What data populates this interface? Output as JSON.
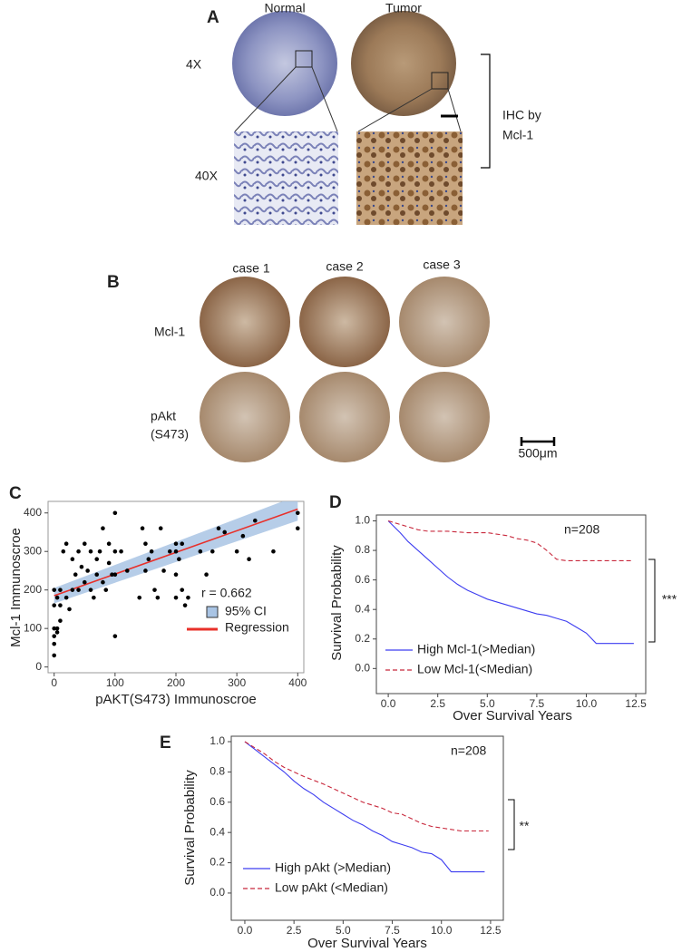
{
  "panels": {
    "A": {
      "label": "A",
      "columns": [
        "Normal",
        "Tumor"
      ],
      "rows": [
        "4X",
        "40X"
      ],
      "bracket_label": [
        "IHC by",
        "Mcl-1"
      ]
    },
    "B": {
      "label": "B",
      "columns": [
        "case 1",
        "case 2",
        "case 3"
      ],
      "rows": [
        [
          "Mcl-1"
        ],
        [
          "pAkt",
          "(S473)"
        ]
      ],
      "scale_bar": "500μm"
    }
  },
  "chart_data": [
    {
      "type": "scatter",
      "panel_label": "C",
      "xlabel": "pAKT(S473) Immunoscroe",
      "ylabel": "Mcl-1 Immunoscroe",
      "annotation": "r = 0.662",
      "xlim": [
        -10,
        410
      ],
      "ylim": [
        -15,
        430
      ],
      "xticks": [
        0,
        100,
        200,
        300,
        400
      ],
      "yticks": [
        0,
        100,
        200,
        300,
        400
      ],
      "color": "#000000",
      "x": [
        0,
        0,
        0,
        0,
        0,
        0,
        5,
        5,
        5,
        10,
        10,
        10,
        15,
        20,
        20,
        25,
        30,
        30,
        35,
        40,
        40,
        45,
        50,
        50,
        55,
        60,
        60,
        65,
        70,
        70,
        75,
        80,
        80,
        85,
        90,
        90,
        95,
        100,
        100,
        100,
        100,
        110,
        120,
        140,
        145,
        150,
        150,
        155,
        160,
        165,
        170,
        175,
        180,
        190,
        200,
        200,
        200,
        200,
        205,
        210,
        210,
        215,
        220,
        240,
        250,
        260,
        270,
        280,
        300,
        310,
        320,
        330,
        360,
        400,
        400
      ],
      "y": [
        30,
        80,
        100,
        200,
        160,
        60,
        90,
        100,
        180,
        120,
        160,
        200,
        300,
        320,
        180,
        150,
        280,
        200,
        240,
        200,
        300,
        260,
        220,
        320,
        250,
        200,
        300,
        180,
        240,
        280,
        300,
        220,
        360,
        200,
        270,
        320,
        240,
        400,
        300,
        240,
        80,
        300,
        250,
        180,
        360,
        320,
        250,
        280,
        300,
        200,
        180,
        360,
        250,
        300,
        240,
        300,
        180,
        320,
        280,
        320,
        200,
        160,
        180,
        300,
        240,
        300,
        360,
        350,
        300,
        340,
        280,
        380,
        300,
        400,
        360
      ],
      "ci": {
        "name": "95% CI",
        "color": "#a9c4e4",
        "x": [
          0,
          400
        ],
        "lower": [
          165,
          380
        ],
        "upper": [
          205,
          445
        ]
      },
      "regression": {
        "name": "Regression",
        "color": "#e8302a",
        "x": [
          0,
          400
        ],
        "y": [
          185,
          410
        ]
      }
    },
    {
      "type": "line",
      "panel_label": "D",
      "xlabel": "Over Survival Years",
      "ylabel": "Survival Probability",
      "annotation": "n=208",
      "significance": "***",
      "legend": "lower left",
      "xlim": [
        -0.6,
        13.0
      ],
      "ylim": [
        -0.17,
        1.04
      ],
      "xticks": [
        {
          "value": 0,
          "label": "0.0"
        },
        2.5,
        {
          "value": 5,
          "label": "5.0"
        },
        7.5,
        {
          "value": 10,
          "label": "10.0"
        },
        12.5
      ],
      "yticks": [
        {
          "value": 0,
          "label": "0.0"
        },
        0.2,
        0.4,
        0.6,
        0.8,
        {
          "value": 1,
          "label": "1.0"
        }
      ],
      "series": [
        {
          "name": "High Mcl-1(>Median)",
          "color": "#3d3df0",
          "dashed": false,
          "x": [
            0,
            0.3,
            0.6,
            1,
            1.5,
            2,
            2.5,
            3,
            3.5,
            4,
            4.5,
            5,
            5.5,
            6,
            6.5,
            7,
            7.5,
            8,
            8.5,
            9,
            9.5,
            10,
            10.5,
            11,
            12.4
          ],
          "values": [
            1,
            0.96,
            0.92,
            0.86,
            0.8,
            0.74,
            0.68,
            0.62,
            0.57,
            0.53,
            0.5,
            0.47,
            0.45,
            0.43,
            0.41,
            0.39,
            0.37,
            0.36,
            0.34,
            0.32,
            0.28,
            0.24,
            0.17,
            0.17,
            0.17
          ]
        },
        {
          "name": "Low Mcl-1(<Median)",
          "color": "#c8283c",
          "dashed": true,
          "x": [
            0,
            0.5,
            1,
            1.5,
            2,
            3,
            4,
            5,
            6,
            6.5,
            7,
            7.5,
            8,
            8.5,
            9,
            10,
            11,
            12.3
          ],
          "values": [
            1,
            0.98,
            0.96,
            0.94,
            0.93,
            0.93,
            0.92,
            0.92,
            0.9,
            0.88,
            0.87,
            0.85,
            0.8,
            0.74,
            0.73,
            0.73,
            0.73,
            0.73
          ]
        }
      ]
    },
    {
      "type": "line",
      "panel_label": "E",
      "xlabel": "Over Survival Years",
      "ylabel": "Survival Probability",
      "annotation": "n=208",
      "significance": "**",
      "legend": "lower left",
      "xlim": [
        -0.69,
        13.15
      ],
      "ylim": [
        -0.18,
        1.036
      ],
      "xticks": [
        {
          "value": 0,
          "label": "0.0"
        },
        2.5,
        {
          "value": 5,
          "label": "5.0"
        },
        7.5,
        {
          "value": 10,
          "label": "10.0"
        },
        12.5
      ],
      "yticks": [
        {
          "value": 0,
          "label": "0.0"
        },
        0.2,
        0.4,
        0.6,
        0.8,
        {
          "value": 1,
          "label": "1.0"
        }
      ],
      "series": [
        {
          "name": "High pAkt (>Median)",
          "color": "#3d3df0",
          "dashed": false,
          "x": [
            0,
            0.5,
            1,
            1.5,
            2,
            2.5,
            3,
            3.5,
            4,
            4.5,
            5,
            5.5,
            6,
            6.5,
            7,
            7.5,
            8,
            8.5,
            9,
            9.5,
            10,
            10.5,
            11,
            12.2
          ],
          "values": [
            1,
            0.95,
            0.9,
            0.85,
            0.8,
            0.74,
            0.69,
            0.65,
            0.6,
            0.56,
            0.52,
            0.48,
            0.45,
            0.41,
            0.38,
            0.34,
            0.32,
            0.3,
            0.27,
            0.26,
            0.22,
            0.14,
            0.14,
            0.14
          ]
        },
        {
          "name": "Low pAkt (<Median)",
          "color": "#c8283c",
          "dashed": true,
          "x": [
            0,
            0.5,
            1,
            1.5,
            2,
            2.5,
            3,
            4,
            5,
            6,
            7,
            7.5,
            8,
            8.5,
            9,
            9.5,
            10,
            10.5,
            11,
            12.4
          ],
          "values": [
            1,
            0.96,
            0.92,
            0.87,
            0.83,
            0.8,
            0.77,
            0.72,
            0.66,
            0.6,
            0.56,
            0.53,
            0.52,
            0.49,
            0.46,
            0.44,
            0.43,
            0.42,
            0.41,
            0.41
          ]
        }
      ]
    }
  ]
}
